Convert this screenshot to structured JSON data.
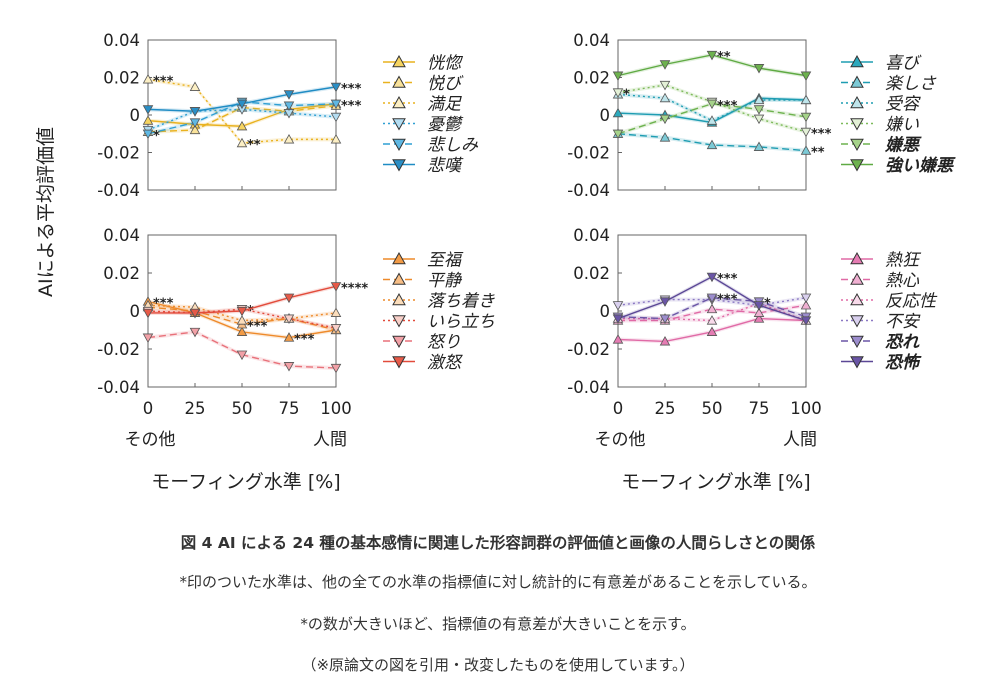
{
  "figure": {
    "ylabel": "AIによる平均評価値",
    "xlabel": "モーフィング水準 [%]",
    "x_ticks": [
      "0",
      "25",
      "50",
      "75",
      "100"
    ],
    "x_endpoint_labels": [
      "その他",
      "人間"
    ],
    "y_ticks": [
      "0.04",
      "0.02",
      "0",
      "-0.02",
      "-0.04"
    ]
  },
  "caption": {
    "title": "図 4 AI による 24 種の基本感情に関連した形容詞群の評価値と画像の人間らしさとの関係",
    "note1": "*印のついた水準は、他の全ての水準の指標値に対し統計的に有意差があることを示している。",
    "note2": "*の数が大きいほど、指標値の有意差が大きいことを示す。",
    "note3": "（※原論文の図を引用・改変したものを使用しています。）"
  },
  "chart_data": [
    {
      "type": "line",
      "panel": "top-left",
      "x": [
        0,
        25,
        50,
        75,
        100
      ],
      "xlim": [
        0,
        100
      ],
      "ylim": [
        -0.04,
        0.04
      ],
      "xlabel": "モーフィング水準 [%]",
      "ylabel": "AIによる平均評価値",
      "series": [
        {
          "name": "恍惚",
          "color": "#E9B21F",
          "dash": "solid",
          "marker": "up",
          "fill": "#F6D461",
          "values": [
            -0.003,
            -0.005,
            -0.006,
            0.003,
            0.006
          ],
          "sig": []
        },
        {
          "name": "悦び",
          "color": "#E9B21F",
          "dash": "dashed",
          "marker": "up",
          "fill": "#F9E29A",
          "values": [
            -0.009,
            -0.008,
            0.004,
            0.002,
            0.005
          ],
          "sig": []
        },
        {
          "name": "満足",
          "color": "#E9B21F",
          "dash": "dotted",
          "marker": "up",
          "fill": "#FCEFC4",
          "values": [
            0.019,
            0.015,
            -0.015,
            -0.013,
            -0.013
          ],
          "sig": [
            {
              "i": 0,
              "t": "***"
            },
            {
              "i": 2,
              "t": "**"
            }
          ]
        },
        {
          "name": "憂鬱",
          "color": "#2F9FD3",
          "dash": "dotted",
          "marker": "down",
          "fill": "#B4DDF2",
          "values": [
            -0.008,
            0.002,
            0.003,
            0.001,
            -0.001
          ],
          "sig": []
        },
        {
          "name": "悲しみ",
          "color": "#2F9FD3",
          "dash": "dashed",
          "marker": "down",
          "fill": "#5FB8E3",
          "values": [
            -0.01,
            -0.004,
            0.007,
            0.005,
            0.006
          ],
          "sig": [
            {
              "i": 0,
              "t": "*"
            },
            {
              "i": 4,
              "t": "***"
            }
          ]
        },
        {
          "name": "悲嘆",
          "color": "#1F8CC4",
          "dash": "solid",
          "marker": "down",
          "fill": "#2A8FC6",
          "values": [
            0.003,
            0.002,
            0.006,
            0.011,
            0.015
          ],
          "sig": [
            {
              "i": 4,
              "t": "***"
            }
          ]
        }
      ]
    },
    {
      "type": "line",
      "panel": "top-right",
      "x": [
        0,
        25,
        50,
        75,
        100
      ],
      "xlim": [
        0,
        100
      ],
      "ylim": [
        -0.04,
        0.04
      ],
      "xlabel": "モーフィング水準 [%]",
      "ylabel": "AIによる平均評価値",
      "series": [
        {
          "name": "喜び",
          "color": "#1E9DB2",
          "dash": "solid",
          "marker": "up",
          "fill": "#2CA9BD",
          "values": [
            0.001,
            0.0,
            -0.004,
            0.009,
            0.008
          ],
          "sig": []
        },
        {
          "name": "楽しさ",
          "color": "#1E9DB2",
          "dash": "dashed",
          "marker": "up",
          "fill": "#7CCAD6",
          "values": [
            -0.01,
            -0.012,
            -0.016,
            -0.017,
            -0.019
          ],
          "sig": [
            {
              "i": 4,
              "t": "**"
            }
          ]
        },
        {
          "name": "受容",
          "color": "#1E9DB2",
          "dash": "dotted",
          "marker": "up",
          "fill": "#BFE5EB",
          "values": [
            0.011,
            0.009,
            -0.003,
            0.008,
            0.008
          ],
          "sig": []
        },
        {
          "name": "嫌い",
          "color": "#7DBA5A",
          "dash": "dotted",
          "marker": "down",
          "fill": "#E3F0D6",
          "values": [
            0.012,
            0.016,
            0.007,
            -0.002,
            -0.009
          ],
          "sig": [
            {
              "i": 0,
              "t": "*"
            },
            {
              "i": 4,
              "t": "***"
            }
          ]
        },
        {
          "name": "嫌悪",
          "color": "#6DB24E",
          "dash": "dashed",
          "marker": "down",
          "fill": "#A6D38A",
          "values": [
            -0.01,
            -0.002,
            0.006,
            0.003,
            -0.001
          ],
          "sig": [
            {
              "i": 2,
              "t": "***"
            }
          ]
        },
        {
          "name": "強い嫌悪",
          "color": "#5FAA43",
          "dash": "solid",
          "marker": "down",
          "fill": "#6DB24E",
          "values": [
            0.021,
            0.027,
            0.032,
            0.025,
            0.021
          ],
          "sig": [
            {
              "i": 2,
              "t": "**"
            }
          ]
        }
      ],
      "bold_legend": [
        "嫌悪",
        "強い嫌悪"
      ]
    },
    {
      "type": "line",
      "panel": "bottom-left",
      "x": [
        0,
        25,
        50,
        75,
        100
      ],
      "xlim": [
        0,
        100
      ],
      "ylim": [
        -0.04,
        0.04
      ],
      "xlabel": "モーフィング水準 [%]",
      "ylabel": "AIによる平均評価値",
      "series": [
        {
          "name": "至福",
          "color": "#EE8A2A",
          "dash": "solid",
          "marker": "up",
          "fill": "#F29B46",
          "values": [
            0.005,
            -0.001,
            -0.011,
            -0.014,
            -0.01
          ],
          "sig": [
            {
              "i": 0,
              "t": "***"
            },
            {
              "i": 3,
              "t": "***"
            }
          ]
        },
        {
          "name": "平静",
          "color": "#EE8A2A",
          "dash": "dashed",
          "marker": "up",
          "fill": "#F7BE86",
          "values": [
            0.002,
            0.0,
            -0.007,
            -0.004,
            -0.01
          ],
          "sig": [
            {
              "i": 2,
              "t": "***"
            }
          ]
        },
        {
          "name": "落ち着き",
          "color": "#EE8A2A",
          "dash": "dotted",
          "marker": "up",
          "fill": "#FBDDBB",
          "values": [
            0.003,
            0.002,
            -0.005,
            -0.004,
            -0.001
          ],
          "sig": []
        },
        {
          "name": "いら立ち",
          "color": "#E24B3B",
          "dash": "dotted",
          "marker": "down",
          "fill": "#F8D0C9",
          "values": [
            0.0,
            -0.001,
            0.001,
            -0.004,
            -0.009
          ],
          "sig": [
            {
              "i": 2,
              "t": "*"
            }
          ]
        },
        {
          "name": "怒り",
          "color": "#E8717A",
          "dash": "dashed",
          "marker": "down",
          "fill": "#F2A1A7",
          "values": [
            -0.014,
            -0.011,
            -0.023,
            -0.029,
            -0.03
          ],
          "sig": []
        },
        {
          "name": "激怒",
          "color": "#E24B3B",
          "dash": "solid",
          "marker": "down",
          "fill": "#E75A48",
          "values": [
            -0.001,
            -0.001,
            0.0,
            0.007,
            0.013
          ],
          "sig": [
            {
              "i": 4,
              "t": "****"
            }
          ]
        }
      ]
    },
    {
      "type": "line",
      "panel": "bottom-right",
      "x": [
        0,
        25,
        50,
        75,
        100
      ],
      "xlim": [
        0,
        100
      ],
      "ylim": [
        -0.04,
        0.04
      ],
      "xlabel": "モーフィング水準 [%]",
      "ylabel": "AIによる平均評価値",
      "series": [
        {
          "name": "熱狂",
          "color": "#E06AA6",
          "dash": "solid",
          "marker": "up",
          "fill": "#E57CB3",
          "values": [
            -0.015,
            -0.016,
            -0.011,
            -0.004,
            -0.005
          ],
          "sig": []
        },
        {
          "name": "熱心",
          "color": "#E06AA6",
          "dash": "dashed",
          "marker": "up",
          "fill": "#F0B0D2",
          "values": [
            -0.005,
            -0.005,
            0.001,
            -0.001,
            0.003
          ],
          "sig": []
        },
        {
          "name": "反応性",
          "color": "#E06AA6",
          "dash": "dotted",
          "marker": "up",
          "fill": "#F8DAEA",
          "values": [
            -0.004,
            -0.004,
            -0.005,
            0.004,
            -0.005
          ],
          "sig": []
        },
        {
          "name": "不安",
          "color": "#8C79C4",
          "dash": "dotted",
          "marker": "down",
          "fill": "#D9D0EE",
          "values": [
            0.003,
            0.006,
            0.006,
            0.003,
            0.007
          ],
          "sig": []
        },
        {
          "name": "恐れ",
          "color": "#6A55A6",
          "dash": "dashed",
          "marker": "down",
          "fill": "#9C8DCD",
          "values": [
            -0.003,
            -0.004,
            0.007,
            0.005,
            -0.003
          ],
          "sig": [
            {
              "i": 2,
              "t": "***"
            },
            {
              "i": 3,
              "t": "*"
            }
          ]
        },
        {
          "name": "恐怖",
          "color": "#5B4796",
          "dash": "solid",
          "marker": "down",
          "fill": "#6A55A6",
          "values": [
            -0.004,
            0.005,
            0.018,
            0.003,
            -0.005
          ],
          "sig": [
            {
              "i": 2,
              "t": "***"
            }
          ]
        }
      ],
      "bold_legend": [
        "恐れ",
        "恐怖"
      ]
    }
  ]
}
